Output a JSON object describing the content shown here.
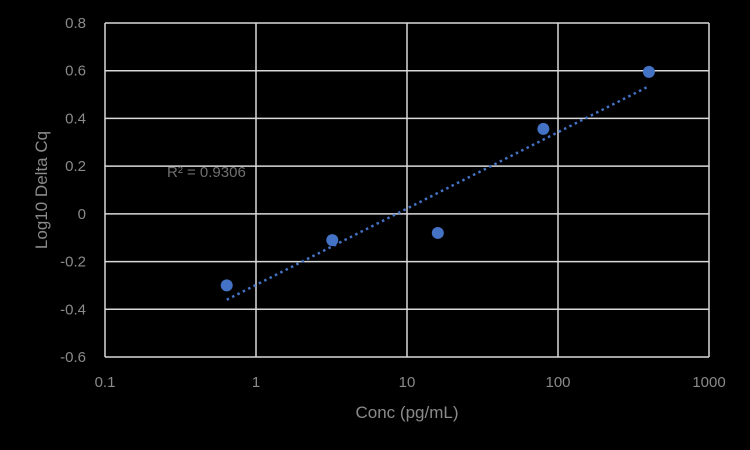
{
  "chart_data": {
    "type": "scatter",
    "title": "",
    "xlabel": "Conc (pg/mL)",
    "ylabel": "Log10 Delta Cq",
    "x_scale": "log",
    "xlim": [
      0.1,
      1000
    ],
    "ylim": [
      -0.6,
      0.8
    ],
    "x_ticks": [
      "0.1",
      "1",
      "10",
      "100",
      "1000"
    ],
    "y_ticks": [
      "0.8",
      "0.6",
      "0.4",
      "0.2",
      "0",
      "-0.2",
      "-0.4",
      "-0.6"
    ],
    "grid": true,
    "legend": "none",
    "series": [
      {
        "name": "Log10 Delta Cq",
        "color": "#4472C4",
        "x": [
          0.64,
          3.2,
          16,
          80,
          400
        ],
        "y": [
          -0.3,
          -0.11,
          -0.08,
          0.356,
          0.595
        ]
      }
    ],
    "trendline": {
      "type": "logarithmic",
      "style": "dotted",
      "color": "#4472C4",
      "x_range": [
        0.64,
        400
      ],
      "y_range": [
        -0.36,
        0.535
      ],
      "r_squared_label": "R² = 0.9306"
    },
    "annotations": [
      "R² = 0.9306"
    ]
  }
}
